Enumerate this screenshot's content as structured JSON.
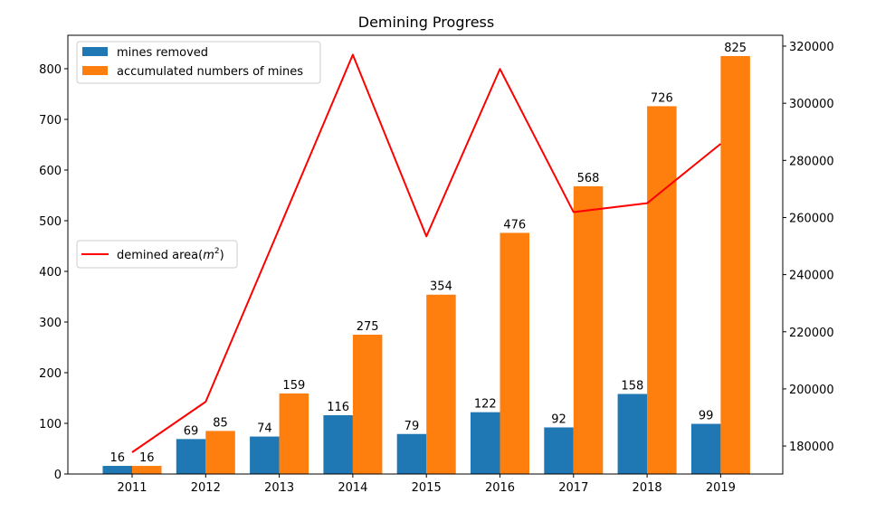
{
  "chart_data": {
    "type": "bar",
    "title": "Demining Progress",
    "xlabel": "",
    "ylabel": "",
    "y2label": "",
    "categories": [
      "2011",
      "2012",
      "2013",
      "2014",
      "2015",
      "2016",
      "2017",
      "2018",
      "2019"
    ],
    "series": [
      {
        "name": "mines removed",
        "type": "bar",
        "axis": "left",
        "color": "#1f77b4",
        "values": [
          16,
          69,
          74,
          116,
          79,
          122,
          92,
          158,
          99
        ],
        "labels": [
          "16",
          "69",
          "74",
          "116",
          "79",
          "122",
          "92",
          "158",
          "99"
        ]
      },
      {
        "name": "accumulated numbers of mines",
        "type": "bar",
        "axis": "left",
        "color": "#ff7f0e",
        "values": [
          16,
          85,
          159,
          275,
          354,
          476,
          568,
          726,
          825
        ],
        "labels": [
          "16",
          "85",
          "159",
          "275",
          "354",
          "476",
          "568",
          "726",
          "825"
        ]
      },
      {
        "name": "demined area(m²)",
        "name_base": "demined area(",
        "name_unit": "m",
        "name_exp": "2",
        "name_close": ")",
        "type": "line",
        "axis": "right",
        "color": "#ff0000",
        "values": [
          177800,
          195500,
          256200,
          317000,
          253400,
          312000,
          261900,
          265000,
          285800
        ]
      }
    ],
    "ylim": [
      0,
      866
    ],
    "y2lim": [
      170200,
      323800
    ],
    "yticks": [
      0,
      100,
      200,
      300,
      400,
      500,
      600,
      700,
      800
    ],
    "ytick_labels": [
      "0",
      "100",
      "200",
      "300",
      "400",
      "500",
      "600",
      "700",
      "800"
    ],
    "y2ticks": [
      180000,
      200000,
      220000,
      240000,
      260000,
      280000,
      300000,
      320000
    ],
    "y2tick_labels": [
      "180000",
      "200000",
      "220000",
      "240000",
      "260000",
      "280000",
      "300000",
      "320000"
    ],
    "grid": false,
    "legends": [
      {
        "placement": "upper-left",
        "entries": [
          "mines removed",
          "accumulated numbers of mines"
        ]
      },
      {
        "placement": "center-left",
        "entries": [
          "demined area(m²)"
        ]
      }
    ]
  }
}
